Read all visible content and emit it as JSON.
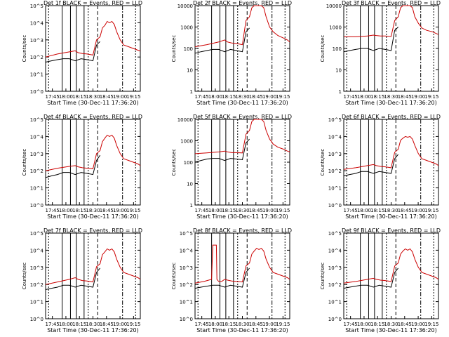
{
  "chart_data": [
    {
      "type": "line",
      "title": "Det 1f BLACK = Events, RED = LLD",
      "xlabel": "Start Time (30-Dec-11 17:36:20)",
      "ylabel": "Counts/sec",
      "yscale": "log",
      "ylim": [
        1,
        100000
      ],
      "yticks": [
        "10^0",
        "10^1",
        "10^2",
        "10^3",
        "10^4",
        "10^5"
      ],
      "xticks": [
        "17:45",
        "18:00",
        "18:15",
        "18:30",
        "18:45",
        "19:00",
        "19:15"
      ],
      "series": [
        {
          "color": "#cc0000",
          "x": [
            0,
            20,
            40,
            50,
            55,
            62,
            70,
            80,
            86,
            92,
            96,
            100,
            104,
            108,
            112,
            116,
            120,
            126,
            132,
            140,
            150,
            156,
            160
          ],
          "y": [
            100,
            150,
            200,
            230,
            180,
            160,
            150,
            130,
            1000,
            1500,
            5000,
            7000,
            12000,
            10000,
            12000,
            8000,
            3000,
            1000,
            500,
            400,
            300,
            250,
            220
          ]
        },
        {
          "color": "#000000",
          "x": [
            0,
            10,
            20,
            30,
            40,
            50,
            60,
            70,
            80,
            86,
            92
          ],
          "y": [
            50,
            60,
            70,
            80,
            80,
            60,
            80,
            70,
            60,
            500,
            800
          ]
        }
      ]
    },
    {
      "type": "line",
      "title": "Det 2f BLACK = Events, RED = LLD",
      "xlabel": "Start Time (30-Dec-11 17:36:20)",
      "ylabel": "Counts/sec",
      "yscale": "log",
      "ylim": [
        1,
        10000
      ],
      "yticks": [
        "1",
        "10",
        "100",
        "1000",
        "10000"
      ],
      "xticks": [
        "17:45",
        "18:00",
        "18:15",
        "18:30",
        "18:45",
        "19:00",
        "19:15"
      ],
      "series": [
        {
          "color": "#cc0000",
          "x": [
            0,
            20,
            40,
            50,
            55,
            62,
            70,
            80,
            86,
            92,
            96,
            100,
            104,
            108,
            112,
            116,
            120,
            126,
            132,
            140,
            150,
            156,
            160
          ],
          "y": [
            120,
            150,
            200,
            250,
            200,
            180,
            170,
            150,
            2000,
            3000,
            8000,
            10000,
            10000,
            10000,
            10000,
            8000,
            3000,
            1000,
            600,
            400,
            300,
            250,
            200
          ]
        },
        {
          "color": "#000000",
          "x": [
            0,
            10,
            20,
            30,
            40,
            50,
            60,
            70,
            80,
            86,
            92
          ],
          "y": [
            60,
            70,
            80,
            90,
            90,
            70,
            90,
            80,
            70,
            600,
            900
          ]
        }
      ]
    },
    {
      "type": "line",
      "title": "Det 3f BLACK = Events, RED = LLD",
      "xlabel": "Start Time (30-Dec-11 17:36:20)",
      "ylabel": "Counts/sec",
      "yscale": "log",
      "ylim": [
        1,
        10000
      ],
      "yticks": [
        "1",
        "10",
        "100",
        "1000",
        "10000"
      ],
      "xticks": [
        "17:45",
        "18:00",
        "18:15",
        "18:30",
        "18:45",
        "19:00",
        "19:15"
      ],
      "series": [
        {
          "color": "#cc0000",
          "x": [
            0,
            20,
            40,
            50,
            55,
            62,
            70,
            80,
            86,
            92,
            96,
            100,
            104,
            108,
            112,
            116,
            120,
            126,
            132,
            140,
            150,
            156,
            160
          ],
          "y": [
            350,
            350,
            380,
            420,
            400,
            380,
            380,
            360,
            2000,
            3000,
            8000,
            10000,
            10000,
            10000,
            10000,
            8000,
            3000,
            1500,
            900,
            700,
            600,
            500,
            450
          ]
        },
        {
          "color": "#000000",
          "x": [
            0,
            10,
            20,
            30,
            40,
            50,
            60,
            70,
            80,
            86,
            92
          ],
          "y": [
            70,
            80,
            90,
            100,
            100,
            80,
            100,
            90,
            80,
            700,
            1000
          ]
        }
      ]
    },
    {
      "type": "line",
      "title": "Det 4f BLACK = Events, RED = LLD",
      "xlabel": "Start Time (30-Dec-11 17:36:20)",
      "ylabel": "Counts/sec",
      "yscale": "log",
      "ylim": [
        1,
        100000
      ],
      "yticks": [
        "10^0",
        "10^1",
        "10^2",
        "10^3",
        "10^4",
        "10^5"
      ],
      "xticks": [
        "17:45",
        "18:00",
        "18:15",
        "18:30",
        "18:45",
        "19:00",
        "19:15"
      ],
      "series": [
        {
          "color": "#cc0000",
          "x": [
            0,
            20,
            40,
            50,
            55,
            62,
            70,
            80,
            86,
            92,
            96,
            100,
            104,
            108,
            112,
            116,
            120,
            126,
            132,
            140,
            150,
            156,
            160
          ],
          "y": [
            100,
            140,
            180,
            200,
            170,
            150,
            140,
            130,
            1000,
            1500,
            5000,
            8000,
            12000,
            10000,
            12000,
            8000,
            3000,
            1000,
            500,
            400,
            300,
            250,
            200
          ]
        },
        {
          "color": "#000000",
          "x": [
            0,
            10,
            20,
            30,
            40,
            50,
            60,
            70,
            80,
            86,
            92
          ],
          "y": [
            40,
            50,
            60,
            80,
            80,
            60,
            80,
            70,
            60,
            400,
            800
          ]
        }
      ]
    },
    {
      "type": "line",
      "title": "Det 5f BLACK = Events, RED = LLD",
      "xlabel": "Start Time (30-Dec-11 17:36:20)",
      "ylabel": "Counts/sec",
      "yscale": "log",
      "ylim": [
        1,
        10000
      ],
      "yticks": [
        "1",
        "10",
        "100",
        "1000",
        "10000"
      ],
      "xticks": [
        "17:45",
        "18:00",
        "18:15",
        "18:30",
        "18:45",
        "19:00",
        "19:15"
      ],
      "series": [
        {
          "color": "#cc0000",
          "x": [
            0,
            20,
            40,
            50,
            55,
            62,
            70,
            80,
            86,
            92,
            96,
            100,
            104,
            108,
            112,
            116,
            120,
            126,
            132,
            140,
            150,
            156,
            160
          ],
          "y": [
            250,
            270,
            300,
            330,
            300,
            280,
            280,
            270,
            2000,
            3000,
            8000,
            10000,
            10000,
            10000,
            10000,
            8000,
            3000,
            1200,
            700,
            500,
            400,
            330,
            300
          ]
        },
        {
          "color": "#000000",
          "x": [
            0,
            10,
            20,
            30,
            40,
            50,
            60,
            70,
            80,
            86,
            92
          ],
          "y": [
            100,
            120,
            140,
            150,
            150,
            120,
            150,
            140,
            130,
            800,
            1200
          ]
        }
      ]
    },
    {
      "type": "line",
      "title": "Det 6f BLACK = Events, RED = LLD",
      "xlabel": "Start Time (30-Dec-11 17:36:20)",
      "ylabel": "Counts/sec",
      "yscale": "log",
      "ylim": [
        1,
        100000
      ],
      "yticks": [
        "10^0",
        "10^1",
        "10^2",
        "10^3",
        "10^4",
        "10^5"
      ],
      "xticks": [
        "17:45",
        "18:00",
        "18:15",
        "18:30",
        "18:45",
        "19:00",
        "19:15"
      ],
      "series": [
        {
          "color": "#cc0000",
          "x": [
            0,
            20,
            40,
            50,
            55,
            62,
            70,
            80,
            86,
            92,
            96,
            100,
            104,
            108,
            112,
            116,
            120,
            126,
            132,
            140,
            150,
            156,
            160
          ],
          "y": [
            120,
            150,
            200,
            230,
            200,
            180,
            170,
            150,
            1200,
            1800,
            6000,
            8000,
            10000,
            9000,
            10000,
            7000,
            3000,
            1000,
            500,
            400,
            300,
            250,
            200
          ]
        },
        {
          "color": "#000000",
          "x": [
            0,
            10,
            20,
            30,
            40,
            50,
            60,
            70,
            80,
            86,
            92
          ],
          "y": [
            50,
            60,
            70,
            90,
            90,
            70,
            90,
            80,
            70,
            500,
            900
          ]
        }
      ]
    },
    {
      "type": "line",
      "title": "Det 7f BLACK = Events, RED = LLD",
      "xlabel": "Start Time (30-Dec-11 17:36:20)",
      "ylabel": "Counts/sec",
      "yscale": "log",
      "ylim": [
        1,
        100000
      ],
      "yticks": [
        "10^0",
        "10^1",
        "10^2",
        "10^3",
        "10^4",
        "10^5"
      ],
      "xticks": [
        "17:45",
        "18:00",
        "18:15",
        "18:30",
        "18:45",
        "19:00",
        "19:15"
      ],
      "series": [
        {
          "color": "#cc0000",
          "x": [
            0,
            20,
            40,
            50,
            55,
            62,
            70,
            80,
            86,
            92,
            96,
            100,
            104,
            108,
            112,
            116,
            120,
            126,
            132,
            140,
            150,
            156,
            160
          ],
          "y": [
            100,
            140,
            200,
            250,
            200,
            170,
            160,
            140,
            1100,
            1600,
            5500,
            8000,
            12000,
            10000,
            12000,
            8000,
            3000,
            1000,
            500,
            400,
            300,
            250,
            200
          ]
        },
        {
          "color": "#000000",
          "x": [
            0,
            10,
            20,
            30,
            40,
            50,
            60,
            70,
            80,
            86,
            92
          ],
          "y": [
            50,
            60,
            70,
            90,
            90,
            70,
            90,
            80,
            70,
            500,
            900
          ]
        }
      ]
    },
    {
      "type": "line",
      "title": "Det 8f BLACK = Events, RED = LLD",
      "xlabel": "Start Time (30-Dec-11 17:36:20)",
      "ylabel": "Counts/sec",
      "yscale": "log",
      "ylim": [
        1,
        100000
      ],
      "yticks": [
        "10^0",
        "10^1",
        "10^2",
        "10^3",
        "10^4",
        "10^5"
      ],
      "xticks": [
        "17:45",
        "18:00",
        "18:15",
        "18:30",
        "18:45",
        "19:00",
        "19:15"
      ],
      "series": [
        {
          "color": "#cc0000",
          "x": [
            0,
            15,
            28,
            30,
            36,
            37,
            40,
            45,
            50,
            55,
            62,
            70,
            80,
            86,
            92,
            96,
            100,
            104,
            108,
            112,
            116,
            120,
            126,
            132,
            140,
            150,
            156,
            160
          ],
          "y": [
            120,
            150,
            200,
            20000,
            20000,
            200,
            150,
            150,
            200,
            180,
            160,
            150,
            140,
            1200,
            1800,
            6000,
            9000,
            13000,
            11000,
            13000,
            9000,
            3000,
            1000,
            500,
            400,
            300,
            250,
            200
          ]
        },
        {
          "color": "#000000",
          "x": [
            0,
            10,
            20,
            30,
            40,
            50,
            60,
            70,
            80,
            86,
            92
          ],
          "y": [
            60,
            70,
            80,
            90,
            90,
            70,
            90,
            80,
            70,
            500,
            900
          ]
        }
      ]
    },
    {
      "type": "line",
      "title": "Det 9f BLACK = Events, RED = LLD",
      "xlabel": "Start Time (30-Dec-11 17:36:20)",
      "ylabel": "Counts/sec",
      "yscale": "log",
      "ylim": [
        1,
        100000
      ],
      "yticks": [
        "10^0",
        "10^1",
        "10^2",
        "10^3",
        "10^4",
        "10^5"
      ],
      "xticks": [
        "17:45",
        "18:00",
        "18:15",
        "18:30",
        "18:45",
        "19:00",
        "19:15"
      ],
      "series": [
        {
          "color": "#cc0000",
          "x": [
            0,
            20,
            40,
            50,
            55,
            62,
            70,
            80,
            86,
            92,
            96,
            100,
            104,
            108,
            112,
            116,
            120,
            126,
            132,
            140,
            150,
            156,
            160
          ],
          "y": [
            120,
            150,
            200,
            230,
            200,
            180,
            170,
            150,
            1200,
            1800,
            6000,
            9000,
            12000,
            10000,
            12000,
            8000,
            3000,
            1000,
            500,
            400,
            300,
            250,
            200
          ]
        },
        {
          "color": "#000000",
          "x": [
            0,
            10,
            20,
            30,
            40,
            50,
            60,
            70,
            80,
            86,
            92
          ],
          "y": [
            60,
            70,
            80,
            90,
            90,
            70,
            90,
            80,
            70,
            500,
            900
          ]
        }
      ]
    }
  ]
}
